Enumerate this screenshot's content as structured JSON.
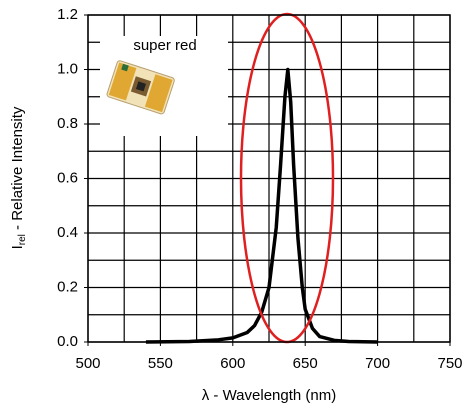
{
  "chart_data": {
    "type": "line",
    "annotation": "super red",
    "ylabel_symbol": "I",
    "ylabel_subscript": "rel",
    "ylabel": " - Relative Intensity",
    "xlabel": "λ - Wavelength (nm)",
    "x": [
      540,
      570,
      590,
      600,
      610,
      615,
      620,
      625,
      630,
      633,
      636,
      638,
      640,
      642,
      645,
      648,
      650,
      655,
      660,
      670,
      680,
      700
    ],
    "values": [
      0,
      0.002,
      0.008,
      0.015,
      0.035,
      0.06,
      0.11,
      0.2,
      0.42,
      0.65,
      0.9,
      1.0,
      0.88,
      0.65,
      0.38,
      0.2,
      0.12,
      0.05,
      0.02,
      0.006,
      0.002,
      0
    ],
    "color": "#000000",
    "xlim": [
      500,
      750
    ],
    "xticks": [
      500,
      550,
      600,
      650,
      700,
      750
    ],
    "xgrid": [
      500,
      525,
      550,
      575,
      600,
      625,
      650,
      675,
      700,
      725,
      750
    ],
    "ylim": [
      0,
      1.2
    ],
    "yticks": [
      {
        "value": 0,
        "label": "0.0"
      },
      0.2,
      0.4,
      0.6,
      0.8,
      {
        "value": 1,
        "label": "1.0"
      },
      1.2
    ],
    "ygrid": [
      0,
      0.1,
      0.2,
      0.3,
      0.4,
      0.5,
      0.6,
      0.7,
      0.8,
      0.9,
      1.0,
      1.1,
      1.2
    ],
    "grid": true
  }
}
